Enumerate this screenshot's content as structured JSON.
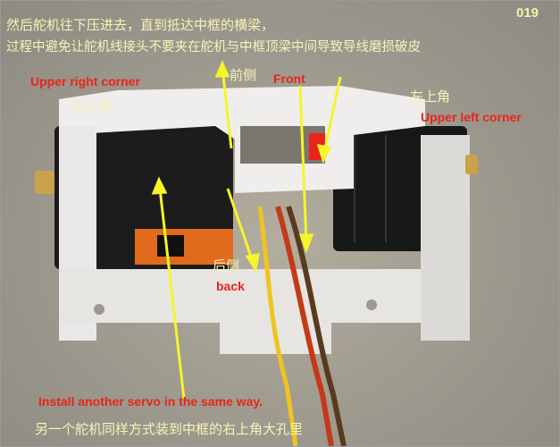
{
  "page_number": "019",
  "instructions": {
    "line1": "然后舵机往下压进去，直到抵达中框的横梁，",
    "line2": "过程中避免让舵机线接头不要夹在舵机与中框顶梁中间导致导线磨损破皮",
    "bottom_cn": "另一个舵机同样方式装到中框的右上角大孔里",
    "bottom_en": "Install another servo in the same way."
  },
  "labels": {
    "upper_right_en": "Upper right corner",
    "upper_right_cn": "右上角",
    "front_cn": "前侧",
    "front_en": "Front",
    "upper_left_cn": "左上角",
    "upper_left_en": "Upper left corner",
    "back_cn": "后侧",
    "back_en": "back"
  },
  "colors": {
    "chinese_text": "#f6f4b8",
    "english_text": "#e8251c",
    "arrow": "#f5f52a",
    "frame": "#ecebea",
    "servo": "#1c1c1c"
  }
}
